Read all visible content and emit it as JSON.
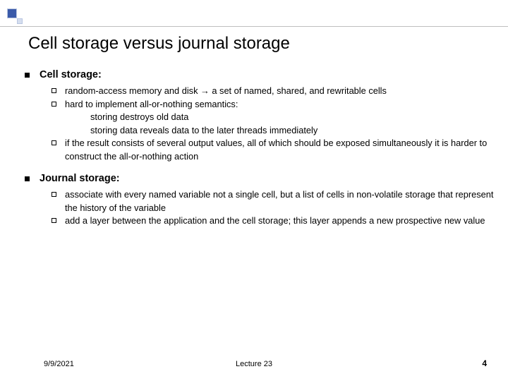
{
  "title": "Cell storage versus journal storage",
  "sections": [
    {
      "heading": "Cell storage:",
      "items": [
        {
          "lines": [
            "random-access memory  and disk → a set of named, shared, and rewritable cells"
          ]
        },
        {
          "lines": [
            "hard to implement all-or-nothing semantics:",
            "storing destroys old data",
            "storing data reveals data to the later threads immediately"
          ],
          "indentFrom": 1
        },
        {
          "lines": [
            "if the result consists of several output values, all of which should be exposed simultaneously it is harder to construct the all-or-nothing action"
          ]
        }
      ]
    },
    {
      "heading": "Journal storage:",
      "items": [
        {
          "lines": [
            "associate with every named variable not a single cell, but a list of cells in non-volatile storage that represent the history of the variable"
          ]
        },
        {
          "lines": [
            "add a layer between the application and the cell storage; this layer appends a new prospective new value"
          ]
        }
      ]
    }
  ],
  "footer": {
    "date": "9/9/2021",
    "center": "Lecture 23",
    "page": "4"
  },
  "style": {
    "background": "#ffffff",
    "title_fontsize": 24,
    "section_title_fontsize": 14.5,
    "body_fontsize": 12.8,
    "footer_fontsize": 11,
    "accent_block_color": "#3a5aa9",
    "accent_block_light": "#d5deef",
    "divider_color": "#bfbfbf"
  }
}
